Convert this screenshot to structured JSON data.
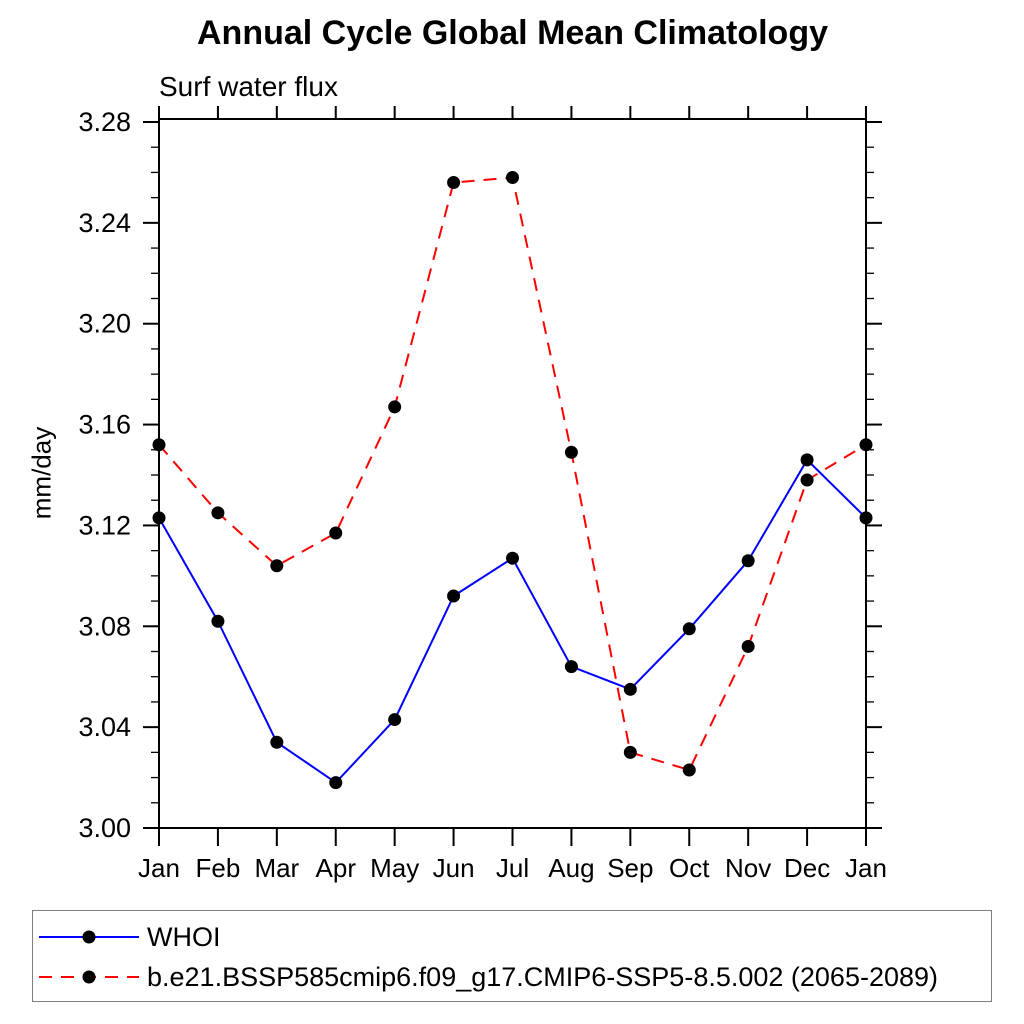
{
  "title": "Annual Cycle Global Mean Climatology",
  "subtitle": "Surf water flux",
  "chart_data": {
    "type": "line",
    "title": "Annual Cycle Global Mean Climatology",
    "subtitle": "Surf water flux",
    "ylabel": "mm/day",
    "xlabel": "",
    "x_categories": [
      "Jan",
      "Feb",
      "Mar",
      "Apr",
      "May",
      "Jun",
      "Jul",
      "Aug",
      "Sep",
      "Oct",
      "Nov",
      "Dec",
      "Jan"
    ],
    "ylim": [
      3.0,
      3.28
    ],
    "ytick_step": 0.04,
    "yminor_step": 0.01,
    "ytick_labels": [
      "3.00",
      "3.04",
      "3.08",
      "3.12",
      "3.16",
      "3.20",
      "3.24",
      "3.28"
    ],
    "grid": false,
    "legend_position": "bottom-left-box",
    "axis_color": "#000000",
    "marker": "filled-circle",
    "marker_color": "#000000",
    "series": [
      {
        "name": "WHOI",
        "color": "#0000ff",
        "line_style": "solid",
        "values": [
          3.123,
          3.082,
          3.034,
          3.018,
          3.043,
          3.092,
          3.107,
          3.064,
          3.055,
          3.079,
          3.106,
          3.146,
          3.123
        ]
      },
      {
        "name": "b.e21.BSSP585cmip6.f09_g17.CMIP6-SSP5-8.5.002 (2065-2089)",
        "color": "#ff0000",
        "line_style": "dashed",
        "values": [
          3.152,
          3.125,
          3.104,
          3.117,
          3.167,
          3.256,
          3.258,
          3.149,
          3.03,
          3.023,
          3.072,
          3.138,
          3.152
        ]
      }
    ],
    "legend_border_color": "#808080"
  }
}
